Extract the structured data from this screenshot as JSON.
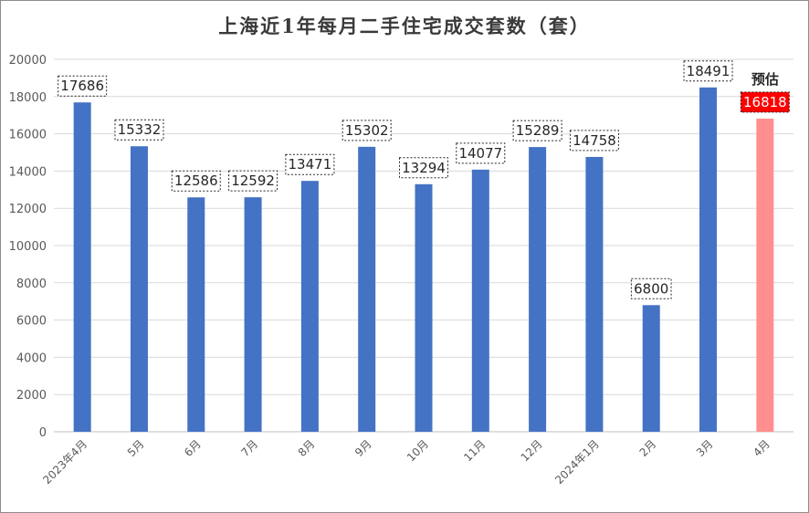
{
  "chart_data": {
    "type": "bar",
    "title": "上海近1年每月二手住宅成交套数（套）",
    "categories": [
      "2023年4月",
      "5月",
      "6月",
      "7月",
      "8月",
      "9月",
      "10月",
      "11月",
      "12月",
      "2024年1月",
      "2月",
      "3月",
      "4月"
    ],
    "values": [
      17686,
      15332,
      12586,
      12592,
      13471,
      15302,
      13294,
      14077,
      15289,
      14758,
      6800,
      18491,
      16818
    ],
    "data_labels": [
      "17686",
      "15332",
      "12586",
      "12592",
      "13471",
      "15302",
      "13294",
      "14077",
      "15289",
      "14758",
      "6800",
      "18491",
      "16818"
    ],
    "ylim": [
      0,
      20000
    ],
    "yticks": [
      0,
      2000,
      4000,
      6000,
      8000,
      10000,
      12000,
      14000,
      16000,
      18000,
      20000
    ],
    "ytick_labels": [
      "0",
      "2000",
      "4000",
      "6000",
      "8000",
      "10000",
      "12000",
      "14000",
      "16000",
      "18000",
      "20000"
    ],
    "grid": true,
    "forecast_index": 12,
    "forecast_note": "预估",
    "colors": {
      "bar": "#4472c4",
      "forecast_bar": "#ff8f8f",
      "forecast_label_bg": "#ff0000",
      "grid": "#d9d9d9"
    }
  }
}
